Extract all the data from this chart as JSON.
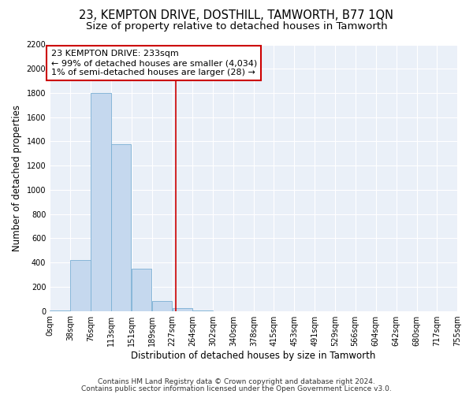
{
  "title": "23, KEMPTON DRIVE, DOSTHILL, TAMWORTH, B77 1QN",
  "subtitle": "Size of property relative to detached houses in Tamworth",
  "xlabel": "Distribution of detached houses by size in Tamworth",
  "ylabel": "Number of detached properties",
  "bar_color": "#c5d8ee",
  "bar_edge_color": "#7aafd4",
  "line_color": "#cc0000",
  "background_color": "#ffffff",
  "plot_bg_color": "#eaf0f8",
  "grid_color": "#ffffff",
  "bin_edges": [
    0,
    38,
    76,
    113,
    151,
    189,
    227,
    264,
    302,
    340,
    378,
    415,
    453,
    491,
    529,
    566,
    604,
    642,
    680,
    717,
    755
  ],
  "bar_heights": [
    5,
    420,
    1800,
    1380,
    350,
    80,
    25,
    5,
    0,
    0,
    0,
    0,
    0,
    0,
    0,
    0,
    0,
    0,
    0,
    0
  ],
  "property_size": 233,
  "ylim": [
    0,
    2200
  ],
  "yticks": [
    0,
    200,
    400,
    600,
    800,
    1000,
    1200,
    1400,
    1600,
    1800,
    2000,
    2200
  ],
  "annotation_line1": "23 KEMPTON DRIVE: 233sqm",
  "annotation_line2": "← 99% of detached houses are smaller (4,034)",
  "annotation_line3": "1% of semi-detached houses are larger (28) →",
  "footnote1": "Contains HM Land Registry data © Crown copyright and database right 2024.",
  "footnote2": "Contains public sector information licensed under the Open Government Licence v3.0.",
  "tick_labels": [
    "0sqm",
    "38sqm",
    "76sqm",
    "113sqm",
    "151sqm",
    "189sqm",
    "227sqm",
    "264sqm",
    "302sqm",
    "340sqm",
    "378sqm",
    "415sqm",
    "453sqm",
    "491sqm",
    "529sqm",
    "566sqm",
    "604sqm",
    "642sqm",
    "680sqm",
    "717sqm",
    "755sqm"
  ],
  "title_fontsize": 10.5,
  "subtitle_fontsize": 9.5,
  "axis_label_fontsize": 8.5,
  "tick_fontsize": 7,
  "annotation_fontsize": 8,
  "footnote_fontsize": 6.5
}
